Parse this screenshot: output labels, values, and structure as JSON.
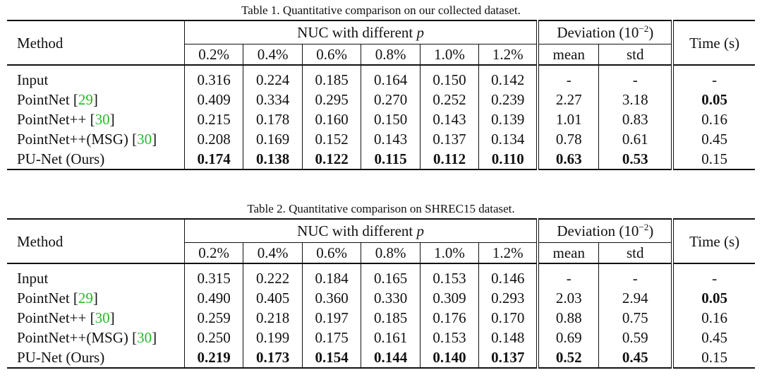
{
  "tables": [
    {
      "caption": "Table 1. Quantitative comparison on our collected dataset.",
      "header": {
        "method": "Method",
        "nuc_prefix": "NUC with different ",
        "nuc_var": "p",
        "deviation_prefix": "Deviation (10",
        "deviation_exp": "−2",
        "deviation_suffix": ")",
        "time": "Time (s)",
        "percents": [
          "0.2%",
          "0.4%",
          "0.6%",
          "0.8%",
          "1.0%",
          "1.2%"
        ],
        "mean": "mean",
        "std": "std"
      },
      "rows": [
        {
          "name": "Input",
          "ref": "",
          "nuc": [
            "0.316",
            "0.224",
            "0.185",
            "0.164",
            "0.150",
            "0.142"
          ],
          "mean": "-",
          "std": "-",
          "time": "-"
        },
        {
          "name": "PointNet ",
          "ref": "29",
          "nuc": [
            "0.409",
            "0.334",
            "0.295",
            "0.270",
            "0.252",
            "0.239"
          ],
          "mean": "2.27",
          "std": "3.18",
          "time": "0.05"
        },
        {
          "name": "PointNet++ ",
          "ref": "30",
          "nuc": [
            "0.215",
            "0.178",
            "0.160",
            "0.150",
            "0.143",
            "0.139"
          ],
          "mean": "1.01",
          "std": "0.83",
          "time": "0.16"
        },
        {
          "name": "PointNet++(MSG) ",
          "ref": "30",
          "nuc": [
            "0.208",
            "0.169",
            "0.152",
            "0.143",
            "0.137",
            "0.134"
          ],
          "mean": "0.78",
          "std": "0.61",
          "time": "0.45"
        },
        {
          "name": "PU-Net (Ours)",
          "ref": "",
          "nuc": [
            "0.174",
            "0.138",
            "0.122",
            "0.115",
            "0.112",
            "0.110"
          ],
          "mean": "0.63",
          "std": "0.53",
          "time": "0.15"
        }
      ]
    },
    {
      "caption": "Table 2. Quantitative comparison on SHREC15 dataset.",
      "header": {
        "method": "Method",
        "nuc_prefix": "NUC with different ",
        "nuc_var": "p",
        "deviation_prefix": "Deviation (10",
        "deviation_exp": "−2",
        "deviation_suffix": ")",
        "time": "Time (s)",
        "percents": [
          "0.2%",
          "0.4%",
          "0.6%",
          "0.8%",
          "1.0%",
          "1.2%"
        ],
        "mean": "mean",
        "std": "std"
      },
      "rows": [
        {
          "name": "Input",
          "ref": "",
          "nuc": [
            "0.315",
            "0.222",
            "0.184",
            "0.165",
            "0.153",
            "0.146"
          ],
          "mean": "-",
          "std": "-",
          "time": "-"
        },
        {
          "name": "PointNet ",
          "ref": "29",
          "nuc": [
            "0.490",
            "0.405",
            "0.360",
            "0.330",
            "0.309",
            "0.293"
          ],
          "mean": "2.03",
          "std": "2.94",
          "time": "0.05"
        },
        {
          "name": "PointNet++ ",
          "ref": "30",
          "nuc": [
            "0.259",
            "0.218",
            "0.197",
            "0.185",
            "0.176",
            "0.170"
          ],
          "mean": "0.88",
          "std": "0.75",
          "time": "0.16"
        },
        {
          "name": "PointNet++(MSG) ",
          "ref": "30",
          "nuc": [
            "0.250",
            "0.199",
            "0.175",
            "0.161",
            "0.153",
            "0.148"
          ],
          "mean": "0.69",
          "std": "0.59",
          "time": "0.45"
        },
        {
          "name": "PU-Net (Ours)",
          "ref": "",
          "nuc": [
            "0.219",
            "0.173",
            "0.154",
            "0.144",
            "0.140",
            "0.137"
          ],
          "mean": "0.52",
          "std": "0.45",
          "time": "0.15"
        }
      ]
    }
  ],
  "bold_rows_index": 4,
  "bold_time_row_index": 1,
  "ref_color": "#22bb22"
}
